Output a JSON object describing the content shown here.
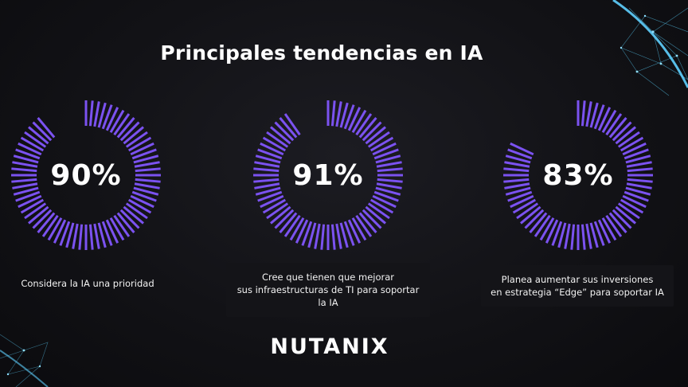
{
  "title": "Principales tendencias en IA",
  "accent_color": "#7b52f0",
  "stats": [
    {
      "value": "90%",
      "fraction": 0.9,
      "caption_lines": [
        "Considera la IA una prioridad"
      ]
    },
    {
      "value": "91%",
      "fraction": 0.91,
      "caption_lines": [
        "Cree que tienen que mejorar",
        "sus infraestructuras de TI para soportar la IA"
      ]
    },
    {
      "value": "83%",
      "fraction": 0.83,
      "caption_lines": [
        "Planea aumentar sus inversiones",
        "en estrategia “Edge” para soportar IA"
      ]
    }
  ],
  "logo_text": "NUTANIX"
}
